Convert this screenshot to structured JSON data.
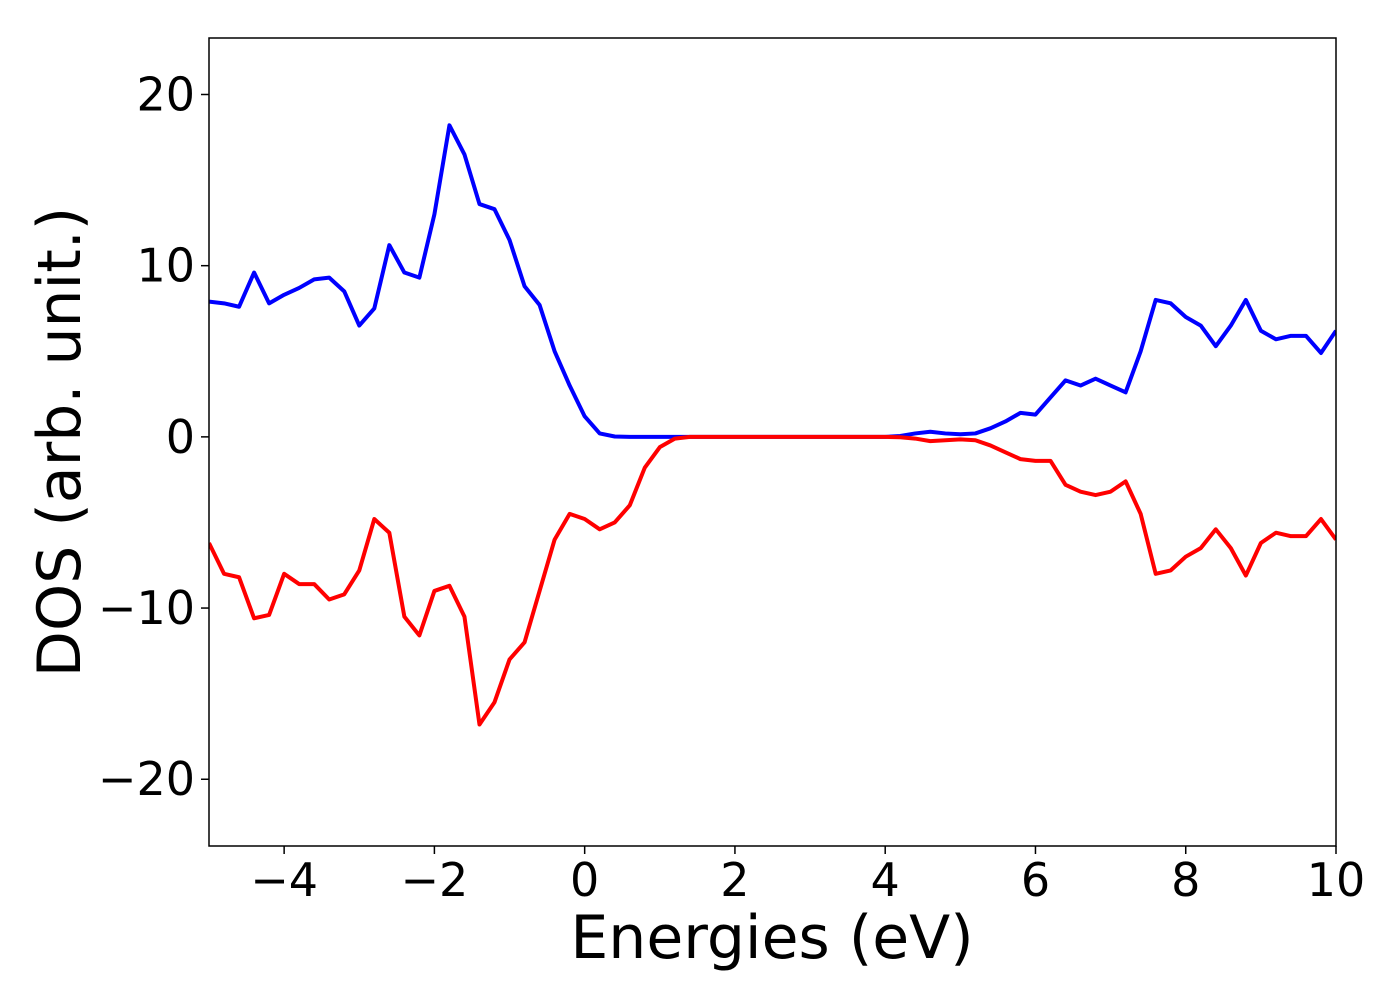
{
  "chart_data": {
    "type": "line",
    "x_label": "Energies (eV)",
    "y_label": "DOS (arb. unit.)",
    "x": [
      -5,
      -4.8,
      -4.6,
      -4.4,
      -4.2,
      -4,
      -3.8,
      -3.6,
      -3.4,
      -3.2,
      -3,
      -2.8,
      -2.6,
      -2.4,
      -2.2,
      -2,
      -1.8,
      -1.6,
      -1.4,
      -1.2,
      -1,
      -0.8,
      -0.6,
      -0.4,
      -0.2,
      0,
      0.2,
      0.4,
      0.6,
      0.8,
      1,
      1.2,
      1.4,
      1.6,
      1.8,
      2,
      2.2,
      2.4,
      2.6,
      2.8,
      3,
      3.2,
      3.4,
      3.6,
      3.8,
      4,
      4.2,
      4.4,
      4.6,
      4.8,
      5,
      5.2,
      5.4,
      5.6,
      5.8,
      6,
      6.2,
      6.4,
      6.6,
      6.8,
      7,
      7.2,
      7.4,
      7.6,
      7.8,
      8,
      8.2,
      8.4,
      8.6,
      8.8,
      9,
      9.2,
      9.4,
      9.6,
      9.8,
      10
    ],
    "series": [
      {
        "color": "#0000ff",
        "values": [
          7.9,
          7.8,
          7.6,
          9.6,
          7.8,
          8.3,
          8.7,
          9.2,
          9.3,
          8.5,
          6.5,
          7.5,
          11.2,
          9.6,
          9.3,
          13,
          18.2,
          16.5,
          13.6,
          13.3,
          11.5,
          8.8,
          7.7,
          5,
          3,
          1.2,
          0.2,
          0.02,
          0,
          0,
          0,
          0,
          0,
          0,
          0,
          0,
          0,
          0,
          0,
          0,
          0,
          0,
          0,
          0,
          0,
          0,
          0.05,
          0.2,
          0.3,
          0.2,
          0.15,
          0.2,
          0.5,
          0.9,
          1.4,
          1.3,
          2.3,
          3.3,
          3.0,
          3.4,
          3.0,
          2.6,
          5.0,
          8.0,
          7.8,
          7.0,
          6.5,
          5.3,
          6.5,
          8.0,
          6.2,
          5.7,
          5.9,
          5.9,
          4.9,
          6.2
        ]
      },
      {
        "color": "#ff0000",
        "values": [
          -6.2,
          -8,
          -8.2,
          -10.6,
          -10.4,
          -8,
          -8.6,
          -8.6,
          -9.5,
          -9.2,
          -7.8,
          -4.8,
          -5.6,
          -10.5,
          -11.6,
          -9,
          -8.7,
          -10.5,
          -16.8,
          -15.5,
          -13,
          -12,
          -9,
          -6,
          -4.5,
          -4.8,
          -5.4,
          -5,
          -4,
          -1.8,
          -0.6,
          -0.1,
          0,
          0,
          0,
          0,
          0,
          0,
          0,
          0,
          0,
          0,
          0,
          0,
          0,
          0,
          -0.02,
          -0.1,
          -0.25,
          -0.2,
          -0.15,
          -0.2,
          -0.5,
          -0.9,
          -1.3,
          -1.4,
          -1.4,
          -2.8,
          -3.2,
          -3.4,
          -3.2,
          -2.6,
          -4.5,
          -8,
          -7.8,
          -7,
          -6.5,
          -5.4,
          -6.5,
          -8.1,
          -6.2,
          -5.6,
          -5.8,
          -5.8,
          -4.8,
          -6
        ]
      }
    ],
    "xlim": [
      -5,
      10
    ],
    "xticks": [
      {
        "value": -4,
        "label": "−4"
      },
      {
        "value": -2,
        "label": "−2"
      },
      0,
      2,
      4,
      6,
      8,
      10
    ],
    "ylim": [
      -23.9,
      23.3
    ],
    "yticks": [
      {
        "value": -20,
        "label": "−20"
      },
      {
        "value": -10,
        "label": "−10"
      },
      0,
      10,
      20
    ],
    "grid": false
  }
}
